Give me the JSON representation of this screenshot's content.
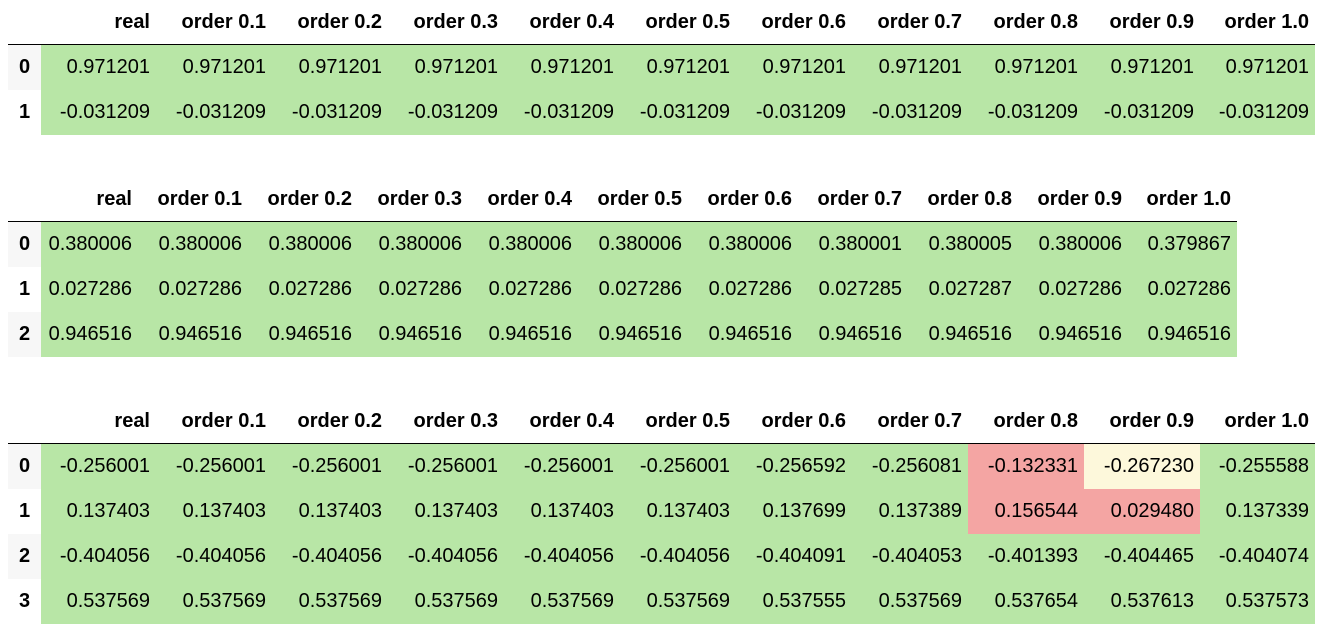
{
  "colors": {
    "good": "#b8e6a6",
    "bad": "#f4a5a3",
    "warn": "#fdf8db",
    "selected_index": "#ddeefa"
  },
  "tables": [
    {
      "columns": [
        "real",
        "order 0.1",
        "order 0.2",
        "order 0.3",
        "order 0.4",
        "order 0.5",
        "order 0.6",
        "order 0.7",
        "order 0.8",
        "order 0.9",
        "order 1.0"
      ],
      "rows": [
        {
          "index": "0",
          "cells": [
            {
              "v": "0.971201",
              "s": "good"
            },
            {
              "v": "0.971201",
              "s": "good"
            },
            {
              "v": "0.971201",
              "s": "good"
            },
            {
              "v": "0.971201",
              "s": "good"
            },
            {
              "v": "0.971201",
              "s": "good"
            },
            {
              "v": "0.971201",
              "s": "good"
            },
            {
              "v": "0.971201",
              "s": "good"
            },
            {
              "v": "0.971201",
              "s": "good"
            },
            {
              "v": "0.971201",
              "s": "good"
            },
            {
              "v": "0.971201",
              "s": "good"
            },
            {
              "v": "0.971201",
              "s": "good"
            }
          ]
        },
        {
          "index": "1",
          "selected": true,
          "cells": [
            {
              "v": "-0.031209",
              "s": "good"
            },
            {
              "v": "-0.031209",
              "s": "good"
            },
            {
              "v": "-0.031209",
              "s": "good"
            },
            {
              "v": "-0.031209",
              "s": "good"
            },
            {
              "v": "-0.031209",
              "s": "good"
            },
            {
              "v": "-0.031209",
              "s": "good"
            },
            {
              "v": "-0.031209",
              "s": "good"
            },
            {
              "v": "-0.031209",
              "s": "good"
            },
            {
              "v": "-0.031209",
              "s": "good"
            },
            {
              "v": "-0.031209",
              "s": "good"
            },
            {
              "v": "-0.031209",
              "s": "good"
            }
          ]
        }
      ]
    },
    {
      "columns": [
        "real",
        "order 0.1",
        "order 0.2",
        "order 0.3",
        "order 0.4",
        "order 0.5",
        "order 0.6",
        "order 0.7",
        "order 0.8",
        "order 0.9",
        "order 1.0"
      ],
      "rows": [
        {
          "index": "0",
          "cells": [
            {
              "v": "0.380006",
              "s": "good"
            },
            {
              "v": "0.380006",
              "s": "good"
            },
            {
              "v": "0.380006",
              "s": "good"
            },
            {
              "v": "0.380006",
              "s": "good"
            },
            {
              "v": "0.380006",
              "s": "good"
            },
            {
              "v": "0.380006",
              "s": "good"
            },
            {
              "v": "0.380006",
              "s": "good"
            },
            {
              "v": "0.380001",
              "s": "good"
            },
            {
              "v": "0.380005",
              "s": "good"
            },
            {
              "v": "0.380006",
              "s": "good"
            },
            {
              "v": "0.379867",
              "s": "good"
            }
          ]
        },
        {
          "index": "1",
          "cells": [
            {
              "v": "0.027286",
              "s": "good"
            },
            {
              "v": "0.027286",
              "s": "good"
            },
            {
              "v": "0.027286",
              "s": "good"
            },
            {
              "v": "0.027286",
              "s": "good"
            },
            {
              "v": "0.027286",
              "s": "good"
            },
            {
              "v": "0.027286",
              "s": "good"
            },
            {
              "v": "0.027286",
              "s": "good"
            },
            {
              "v": "0.027285",
              "s": "good"
            },
            {
              "v": "0.027287",
              "s": "good"
            },
            {
              "v": "0.027286",
              "s": "good"
            },
            {
              "v": "0.027286",
              "s": "good"
            }
          ]
        },
        {
          "index": "2",
          "cells": [
            {
              "v": "0.946516",
              "s": "good"
            },
            {
              "v": "0.946516",
              "s": "good"
            },
            {
              "v": "0.946516",
              "s": "good"
            },
            {
              "v": "0.946516",
              "s": "good"
            },
            {
              "v": "0.946516",
              "s": "good"
            },
            {
              "v": "0.946516",
              "s": "good"
            },
            {
              "v": "0.946516",
              "s": "good"
            },
            {
              "v": "0.946516",
              "s": "good"
            },
            {
              "v": "0.946516",
              "s": "good"
            },
            {
              "v": "0.946516",
              "s": "good"
            },
            {
              "v": "0.946516",
              "s": "good"
            }
          ]
        }
      ]
    },
    {
      "columns": [
        "real",
        "order 0.1",
        "order 0.2",
        "order 0.3",
        "order 0.4",
        "order 0.5",
        "order 0.6",
        "order 0.7",
        "order 0.8",
        "order 0.9",
        "order 1.0"
      ],
      "rows": [
        {
          "index": "0",
          "cells": [
            {
              "v": "-0.256001",
              "s": "good"
            },
            {
              "v": "-0.256001",
              "s": "good"
            },
            {
              "v": "-0.256001",
              "s": "good"
            },
            {
              "v": "-0.256001",
              "s": "good"
            },
            {
              "v": "-0.256001",
              "s": "good"
            },
            {
              "v": "-0.256001",
              "s": "good"
            },
            {
              "v": "-0.256592",
              "s": "good"
            },
            {
              "v": "-0.256081",
              "s": "good"
            },
            {
              "v": "-0.132331",
              "s": "bad"
            },
            {
              "v": "-0.267230",
              "s": "warn"
            },
            {
              "v": "-0.255588",
              "s": "good"
            }
          ]
        },
        {
          "index": "1",
          "cells": [
            {
              "v": "0.137403",
              "s": "good"
            },
            {
              "v": "0.137403",
              "s": "good"
            },
            {
              "v": "0.137403",
              "s": "good"
            },
            {
              "v": "0.137403",
              "s": "good"
            },
            {
              "v": "0.137403",
              "s": "good"
            },
            {
              "v": "0.137403",
              "s": "good"
            },
            {
              "v": "0.137699",
              "s": "good"
            },
            {
              "v": "0.137389",
              "s": "good"
            },
            {
              "v": "0.156544",
              "s": "bad"
            },
            {
              "v": "0.029480",
              "s": "bad"
            },
            {
              "v": "0.137339",
              "s": "good"
            }
          ]
        },
        {
          "index": "2",
          "cells": [
            {
              "v": "-0.404056",
              "s": "good"
            },
            {
              "v": "-0.404056",
              "s": "good"
            },
            {
              "v": "-0.404056",
              "s": "good"
            },
            {
              "v": "-0.404056",
              "s": "good"
            },
            {
              "v": "-0.404056",
              "s": "good"
            },
            {
              "v": "-0.404056",
              "s": "good"
            },
            {
              "v": "-0.404091",
              "s": "good"
            },
            {
              "v": "-0.404053",
              "s": "good"
            },
            {
              "v": "-0.401393",
              "s": "good"
            },
            {
              "v": "-0.404465",
              "s": "good"
            },
            {
              "v": "-0.404074",
              "s": "good"
            }
          ]
        },
        {
          "index": "3",
          "cells": [
            {
              "v": "0.537569",
              "s": "good"
            },
            {
              "v": "0.537569",
              "s": "good"
            },
            {
              "v": "0.537569",
              "s": "good"
            },
            {
              "v": "0.537569",
              "s": "good"
            },
            {
              "v": "0.537569",
              "s": "good"
            },
            {
              "v": "0.537569",
              "s": "good"
            },
            {
              "v": "0.537555",
              "s": "good"
            },
            {
              "v": "0.537569",
              "s": "good"
            },
            {
              "v": "0.537654",
              "s": "good"
            },
            {
              "v": "0.537613",
              "s": "good"
            },
            {
              "v": "0.537573",
              "s": "good"
            }
          ]
        }
      ]
    }
  ]
}
